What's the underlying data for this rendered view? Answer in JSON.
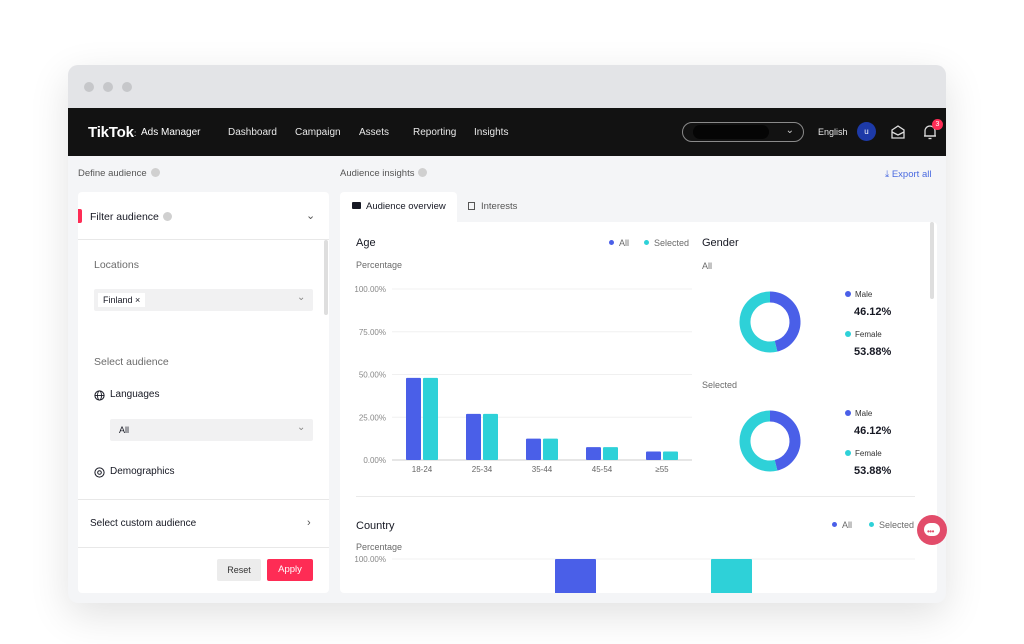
{
  "nav": {
    "logo": "TikTok",
    "logo_sub": "Ads Manager",
    "items": [
      "Dashboard",
      "Campaign",
      "Assets",
      "Reporting",
      "Insights"
    ],
    "language": "English",
    "avatar_initial": "u",
    "notification_count": "3"
  },
  "left": {
    "section_title": "Define audience",
    "filter_title": "Filter audience",
    "locations_label": "Locations",
    "location_tag": "Finland",
    "select_audience_label": "Select audience",
    "languages_label": "Languages",
    "languages_value": "All",
    "demographics_label": "Demographics",
    "custom_audience_label": "Select custom audience",
    "reset_label": "Reset",
    "apply_label": "Apply"
  },
  "right": {
    "section_title": "Audience insights",
    "export_label": "Export all",
    "tabs": [
      {
        "label": "Audience overview",
        "icon": "folder-icon"
      },
      {
        "label": "Interests",
        "icon": "bookmark-icon"
      }
    ],
    "legend_all": "All",
    "legend_selected": "Selected",
    "age_title": "Age",
    "percentage_label": "Percentage",
    "gender_title": "Gender",
    "gender_all_label": "All",
    "gender_selected_label": "Selected",
    "country_title": "Country"
  },
  "colors": {
    "all": "#4a5fe8",
    "selected": "#2ed1d8",
    "brand": "#fe2c55"
  },
  "chart_data": [
    {
      "type": "bar",
      "title": "Age",
      "ylabel": "Percentage",
      "categories": [
        "18-24",
        "25-34",
        "35-44",
        "45-54",
        "≥55"
      ],
      "yticks": [
        "0.00%",
        "25.00%",
        "50.00%",
        "75.00%",
        "100.00%"
      ],
      "ylim": [
        0,
        100
      ],
      "series": [
        {
          "name": "All",
          "values": [
            48,
            27,
            12.5,
            7.5,
            5
          ]
        },
        {
          "name": "Selected",
          "values": [
            48,
            27,
            12.5,
            7.5,
            5
          ]
        }
      ],
      "legend": "top-right"
    },
    {
      "type": "pie",
      "title": "Gender",
      "subtitle": "All",
      "slices": [
        {
          "name": "Male",
          "value": 46.12,
          "label": "46.12%"
        },
        {
          "name": "Female",
          "value": 53.88,
          "label": "53.88%"
        }
      ]
    },
    {
      "type": "pie",
      "title": "Gender",
      "subtitle": "Selected",
      "slices": [
        {
          "name": "Male",
          "value": 46.12,
          "label": "46.12%"
        },
        {
          "name": "Female",
          "value": 53.88,
          "label": "53.88%"
        }
      ]
    },
    {
      "type": "bar",
      "title": "Country",
      "ylabel": "Percentage",
      "yticks": [
        "100.00%"
      ],
      "ylim": [
        0,
        100
      ],
      "series": [
        {
          "name": "All",
          "values": [
            100
          ]
        },
        {
          "name": "Selected",
          "values": [
            100
          ]
        }
      ],
      "legend": "top-right"
    }
  ]
}
